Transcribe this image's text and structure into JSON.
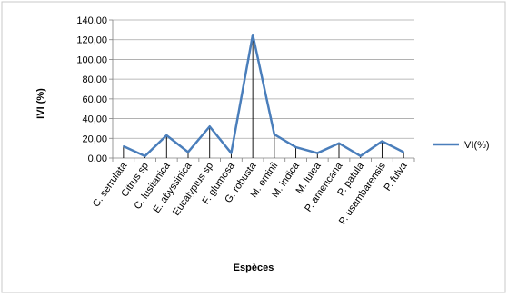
{
  "chart_data": {
    "type": "line",
    "xlabel": "Espèces",
    "ylabel": "IVI (%)",
    "ylim": [
      0,
      140
    ],
    "y_ticks": [
      "0,00",
      "20,00",
      "40,00",
      "60,00",
      "80,00",
      "100,00",
      "120,00",
      "140,00"
    ],
    "grid": true,
    "legend_position": "right",
    "line_color": "#4a7ebb",
    "categories": [
      "C. serrulata",
      "Citrus sp",
      "C. lusitanica",
      "E. abyssinica",
      "Eucalyptus sp",
      "F. glumosa",
      "G. robusta",
      "M. eminii",
      "M. indica",
      "M. lutea",
      "P. americana",
      "P. patula",
      "P. usambarensis",
      "P. fulva"
    ],
    "series": [
      {
        "name": "IVI(%)",
        "values": [
          12,
          2,
          23,
          6,
          32,
          5,
          125,
          24,
          11,
          5,
          15,
          2,
          17,
          6
        ]
      }
    ]
  }
}
